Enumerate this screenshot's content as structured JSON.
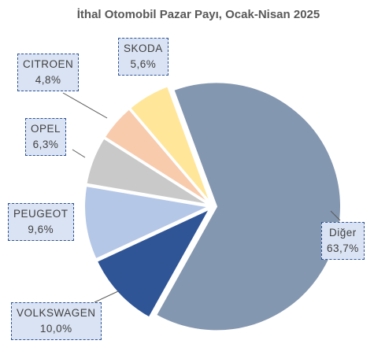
{
  "chart_data": {
    "type": "pie",
    "title": "İthal Otomobil Pazar Payı, Ocak-Nisan 2025",
    "categories": [
      "Diğer",
      "VOLKSWAGEN",
      "PEUGEOT",
      "OPEL",
      "CITROEN",
      "SKODA"
    ],
    "values": [
      63.7,
      10.0,
      9.6,
      6.3,
      4.8,
      5.6
    ],
    "value_labels": [
      "63,7%",
      "10,0%",
      "9,6%",
      "6,3%",
      "4,8%",
      "5,6%"
    ],
    "colors": [
      "#8497b0",
      "#2f5597",
      "#b4c7e7",
      "#c9c9c9",
      "#f8cbad",
      "#ffe699"
    ]
  }
}
